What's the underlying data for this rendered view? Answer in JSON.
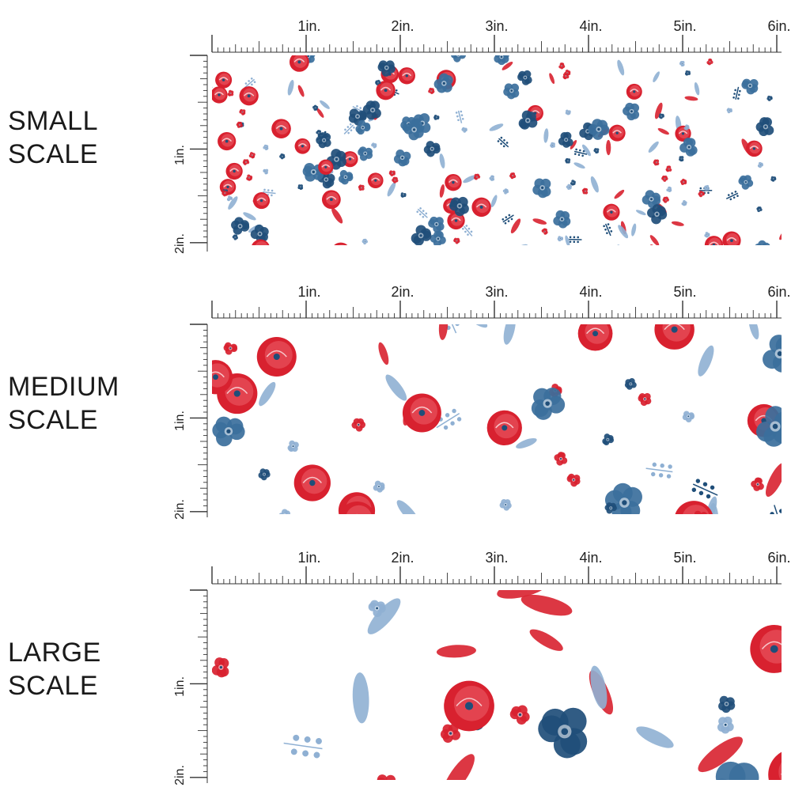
{
  "colors": {
    "red": "#d8212f",
    "red_light": "#e8525c",
    "navy": "#1f4e79",
    "blue": "#3b6f9c",
    "sky": "#8fb0d3",
    "ruler": "#333333"
  },
  "ruler": {
    "top_labels": [
      "1in.",
      "2in.",
      "3in.",
      "4in.",
      "5in.",
      "6in."
    ],
    "side_labels": [
      "1in.",
      "2in."
    ]
  },
  "panels": [
    {
      "id": "small",
      "label_line1": "SMALL",
      "label_line2": "SCALE",
      "scale": 0.48,
      "seed": 11
    },
    {
      "id": "medium",
      "label_line1": "MEDIUM",
      "label_line2": "SCALE",
      "scale": 1.0,
      "seed": 29
    },
    {
      "id": "large",
      "label_line1": "LARGE",
      "label_line2": "SCALE",
      "scale": 1.45,
      "seed": 47
    }
  ]
}
